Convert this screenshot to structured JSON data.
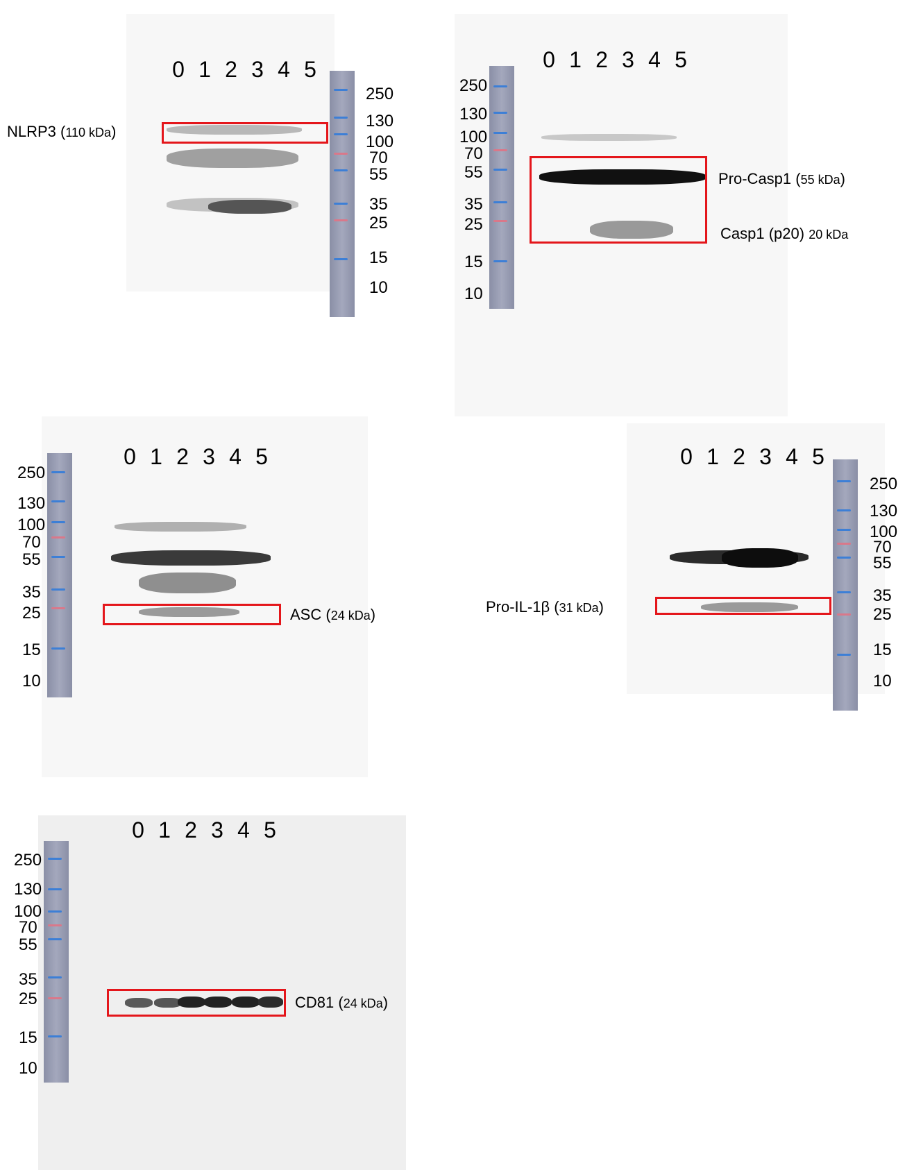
{
  "lane_numbers": [
    "0",
    "1",
    "2",
    "3",
    "4",
    "5"
  ],
  "mw_markers": [
    "250",
    "130",
    "100",
    "70",
    "55",
    "35",
    "25",
    "15",
    "10"
  ],
  "panels": {
    "nlrp3": {
      "protein": "NLRP3 (",
      "size": "110 kDa",
      "close": ")"
    },
    "casp1": {
      "pro_protein": "Pro-Casp1 (",
      "pro_size": "55 kDa",
      "pro_close": ")",
      "cleaved_protein": "Casp1 (p20)",
      "cleaved_size": "20 kDa"
    },
    "asc": {
      "protein": "ASC (",
      "size": "24 kDa",
      "close": ")"
    },
    "il1b": {
      "protein": "Pro-IL-1β (",
      "size": "31 kDa",
      "close": ")"
    },
    "cd81": {
      "protein": "CD81 (",
      "size": "24 kDa",
      "close": ")"
    }
  },
  "colors": {
    "highlight_box": "#e4161b",
    "ladder_blue": "#3d7fd6",
    "ladder_red": "#d9788a"
  }
}
